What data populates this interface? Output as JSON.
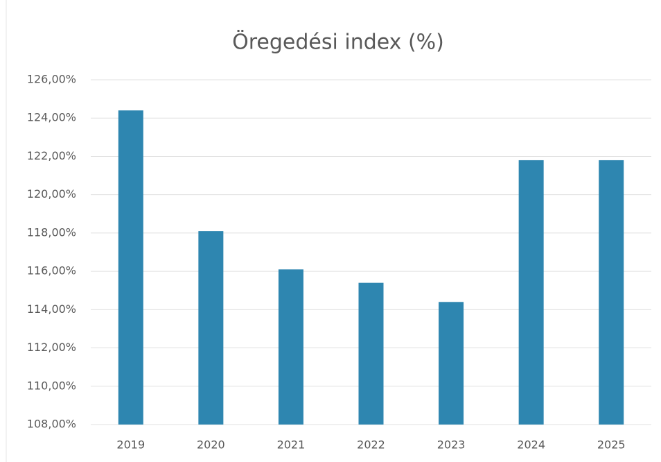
{
  "chart_data": {
    "type": "bar",
    "title": "Öregedési index (%)",
    "categories": [
      "2019",
      "2020",
      "2021",
      "2022",
      "2023",
      "2024",
      "2025"
    ],
    "values": [
      124.4,
      118.1,
      116.1,
      115.4,
      114.4,
      121.8,
      121.8
    ],
    "color": "#2e86b0",
    "ylim": [
      108,
      126
    ],
    "yticks": [
      {
        "value": 108,
        "label": "108,00%"
      },
      {
        "value": 110,
        "label": "110,00%"
      },
      {
        "value": 112,
        "label": "112,00%"
      },
      {
        "value": 114,
        "label": "114,00%"
      },
      {
        "value": 116,
        "label": "116,00%"
      },
      {
        "value": 118,
        "label": "118,00%"
      },
      {
        "value": 120,
        "label": "120,00%"
      },
      {
        "value": 122,
        "label": "122,00%"
      },
      {
        "value": 124,
        "label": "124,00%"
      },
      {
        "value": 126,
        "label": "126,00%"
      }
    ],
    "grid": true
  }
}
